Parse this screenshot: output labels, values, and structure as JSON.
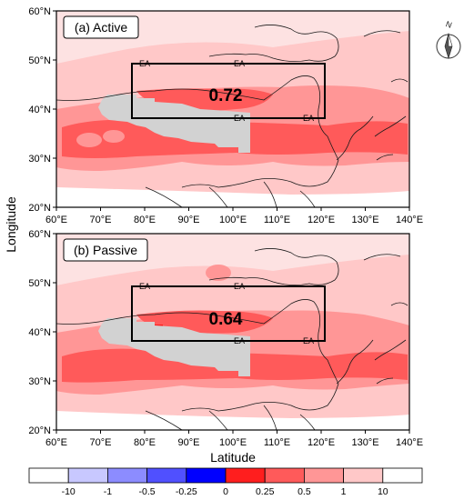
{
  "axes": {
    "ylabel": "Longitude",
    "xlabel": "Latitude",
    "lat_ticks": [
      "60°N",
      "50°N",
      "40°N",
      "30°N",
      "20°N"
    ],
    "lon_ticks": [
      "60°E",
      "70°E",
      "80°E",
      "90°E",
      "100°E",
      "110°E",
      "120°E",
      "130°E",
      "140°E"
    ]
  },
  "panels": [
    {
      "label": "(a) Active",
      "value": "0.72",
      "ea_label": "EA"
    },
    {
      "label": "(b) Passive",
      "value": "0.64",
      "ea_label": "EA"
    }
  ],
  "colorbar": {
    "labels": [
      "-10",
      "-1",
      "-0.5",
      "-0.25",
      "0",
      "0.25",
      "0.5",
      "1",
      "10"
    ],
    "colors": [
      "#ffffff",
      "#c8c8ff",
      "#8c8cff",
      "#5050ff",
      "#0000ff",
      "#ff1e1e",
      "#ff5a5a",
      "#ff9696",
      "#ffc8c8",
      "#ffffff"
    ]
  },
  "colors": {
    "land_mask": "#d2d2d2",
    "low": "#ffc8c8",
    "mid": "#ff9696",
    "high": "#ff5a5a",
    "max": "#ff1e1e"
  },
  "north_arrow": {
    "letter": "N"
  }
}
